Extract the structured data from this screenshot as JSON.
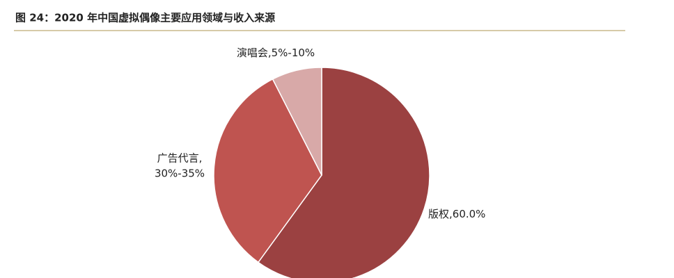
{
  "chart_data": {
    "type": "pie",
    "title": "图 24：2020 年中国虚拟偶像主要应用领域与收入来源",
    "categories": [
      "版权,",
      "广告代言,",
      "演唱会,"
    ],
    "values": [
      60,
      32.5,
      7.5
    ],
    "value_labels": [
      "60.0%",
      "30%-35%",
      "5%-10%"
    ],
    "colors": [
      "#9b4141",
      "#bf5450",
      "#d8a9a8"
    ]
  }
}
